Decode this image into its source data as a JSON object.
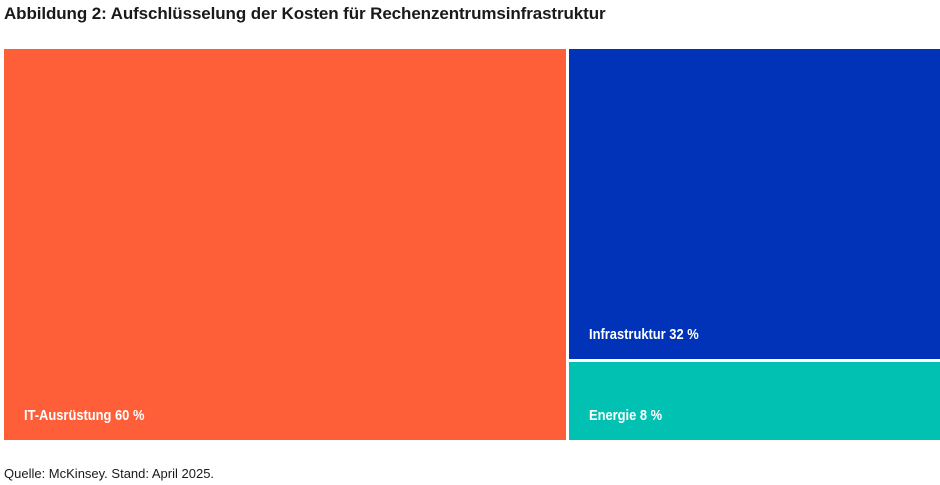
{
  "chart_data": {
    "type": "treemap",
    "title": "Abbildung 2: Aufschlüsselung der Kosten für Rechenzentrumsinfrastruktur",
    "unit": "%",
    "items": [
      {
        "name": "IT-Ausrüstung",
        "value": 60,
        "label": "IT-Ausrüstung 60 %",
        "color": "#ff5f38"
      },
      {
        "name": "Infrastruktur",
        "value": 32,
        "label": "Infrastruktur 32 %",
        "color": "#0033b8"
      },
      {
        "name": "Energie",
        "value": 8,
        "label": "Energie 8 %",
        "color": "#00c1b2"
      }
    ]
  },
  "footer": {
    "source": "Quelle: McKinsey. Stand: April 2025."
  }
}
